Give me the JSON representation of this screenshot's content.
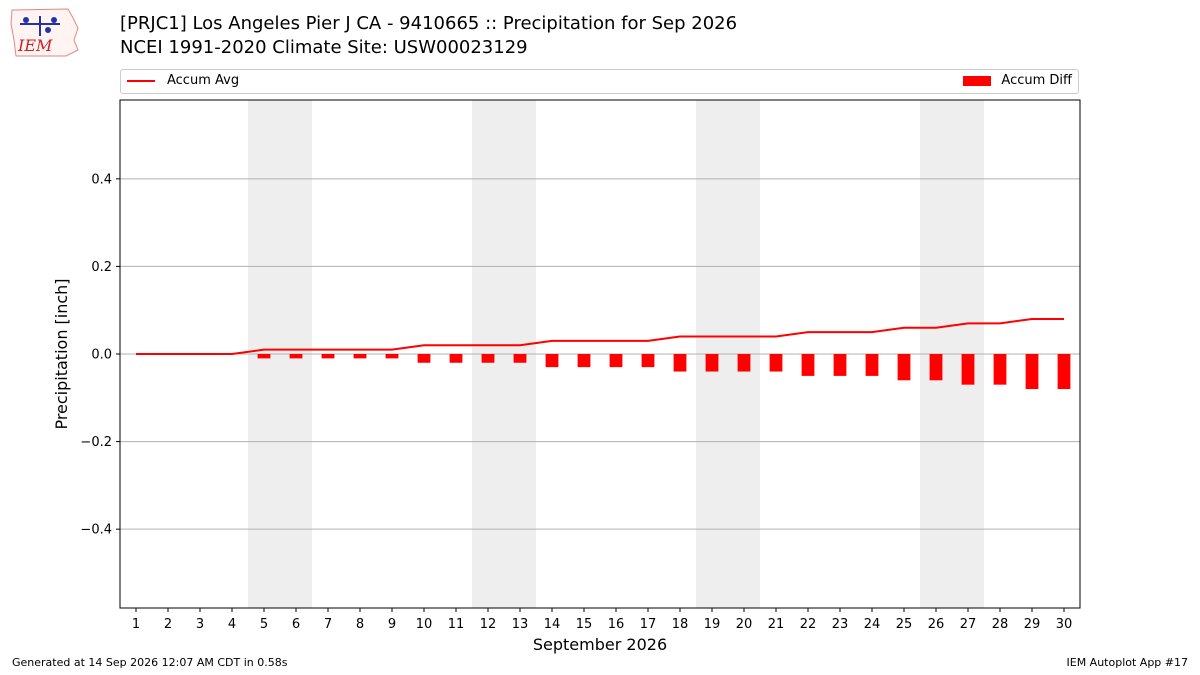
{
  "title_line1": "[PRJC1] Los Angeles Pier J  CA - 9410665 :: Precipitation for Sep 2026",
  "title_line2": "NCEI 1991-2020 Climate Site: USW00023129",
  "logo_text": "IEM",
  "legend": {
    "line_label": "Accum Avg",
    "bar_label": "Accum Diff"
  },
  "footer": {
    "left": "Generated at 14 Sep 2026 12:07 AM CDT in 0.58s",
    "right": "IEM Autoplot App #17"
  },
  "colors": {
    "series": "#ff0000",
    "weekend_shade": "#eeeeee",
    "grid": "#b0b0b0"
  },
  "chart_data": {
    "type": "bar",
    "xlabel": "September 2026",
    "ylabel": "Precipitation [inch]",
    "ylim": [
      -0.58,
      0.58
    ],
    "yticks": [
      -0.4,
      -0.2,
      0.0,
      0.2,
      0.4
    ],
    "ytick_labels": [
      "−0.4",
      "−0.2",
      "0.0",
      "0.2",
      "0.4"
    ],
    "x": [
      1,
      2,
      3,
      4,
      5,
      6,
      7,
      8,
      9,
      10,
      11,
      12,
      13,
      14,
      15,
      16,
      17,
      18,
      19,
      20,
      21,
      22,
      23,
      24,
      25,
      26,
      27,
      28,
      29,
      30
    ],
    "xlim": [
      0.5,
      30.5
    ],
    "grid": "horizontal",
    "weekend_spans": [
      [
        4.5,
        6.5
      ],
      [
        11.5,
        13.5
      ],
      [
        18.5,
        20.5
      ],
      [
        25.5,
        27.5
      ]
    ],
    "series": [
      {
        "name": "Accum Avg",
        "kind": "line",
        "values": [
          0,
          0,
          0,
          0,
          0.01,
          0.01,
          0.01,
          0.01,
          0.01,
          0.02,
          0.02,
          0.02,
          0.02,
          0.03,
          0.03,
          0.03,
          0.03,
          0.04,
          0.04,
          0.04,
          0.04,
          0.05,
          0.05,
          0.05,
          0.06,
          0.06,
          0.07,
          0.07,
          0.08,
          0.08
        ]
      },
      {
        "name": "Accum Diff",
        "kind": "bar",
        "values": [
          0,
          0,
          0,
          0,
          -0.01,
          -0.01,
          -0.01,
          -0.01,
          -0.01,
          -0.02,
          -0.02,
          -0.02,
          -0.02,
          -0.03,
          -0.03,
          -0.03,
          -0.03,
          -0.04,
          -0.04,
          -0.04,
          -0.04,
          -0.05,
          -0.05,
          -0.05,
          -0.06,
          -0.06,
          -0.07,
          -0.07,
          -0.08,
          -0.08
        ]
      }
    ]
  }
}
